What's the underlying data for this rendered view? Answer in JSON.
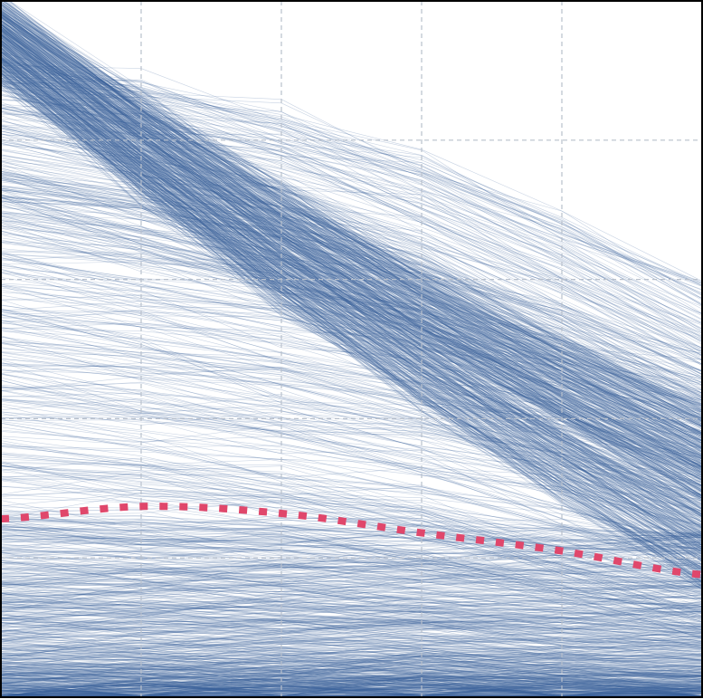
{
  "chart_data": {
    "type": "line",
    "title": "",
    "xlabel": "",
    "ylabel": "",
    "xlim": [
      0,
      5
    ],
    "ylim": [
      0,
      5
    ],
    "grid": true,
    "legend": "none",
    "x": [
      0,
      1,
      2,
      3,
      4,
      5
    ],
    "series": [
      {
        "kind": "trajectory_bundle",
        "description_only": false,
        "n_lines": 1600,
        "color": "#3a6099",
        "opacity": 0.28,
        "groups": [
          {
            "count": 520,
            "start": [
              4.45,
              5.0
            ],
            "end": [
              0.85,
              2.05
            ],
            "mid_bias": -0.12
          },
          {
            "count": 180,
            "start": [
              3.4,
              4.6
            ],
            "end": [
              1.6,
              2.9
            ],
            "mid_bias": 0.18
          },
          {
            "count": 260,
            "start": [
              1.1,
              3.8
            ],
            "end": [
              0.5,
              2.4
            ],
            "mid_bias": 0.1
          },
          {
            "count": 640,
            "start": [
              0.0,
              1.3
            ],
            "end": [
              0.0,
              1.1
            ],
            "mid_bias": 0.02
          }
        ]
      },
      {
        "kind": "mean_line",
        "color": "#e0476b",
        "style": "dotted",
        "values": [
          1.28,
          1.37,
          1.32,
          1.18,
          1.05,
          0.88
        ]
      }
    ],
    "colors": {
      "frame": "#000000",
      "grid": "#b8c0cc",
      "background": "#ffffff"
    }
  }
}
